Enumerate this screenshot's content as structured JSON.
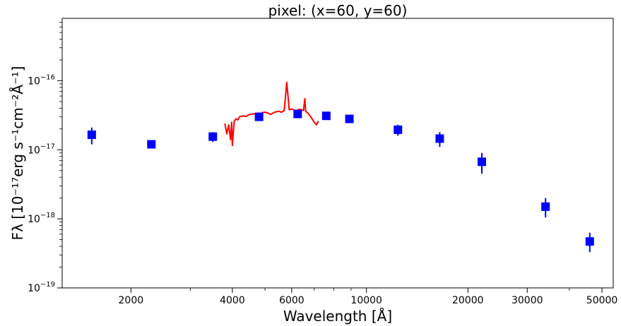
{
  "chart_data": {
    "type": "scatter",
    "title": "pixel: (x=60, y=60)",
    "xlabel": "Wavelength [Å]",
    "ylabel": "Fλ [10⁻¹⁷erg s⁻¹cm⁻²Å⁻¹]",
    "xscale": "log",
    "yscale": "log",
    "xlim": [
      1250,
      54000
    ],
    "ylim": [
      1e-19,
      8e-16
    ],
    "x_ticks": [
      {
        "value": 2000,
        "label": "2000"
      },
      {
        "value": 4000,
        "label": "4000"
      },
      {
        "value": 6000,
        "label": "6000"
      },
      {
        "value": 10000,
        "label": "10000"
      },
      {
        "value": 20000,
        "label": "20000"
      },
      {
        "value": 30000,
        "label": "30000"
      },
      {
        "value": 50000,
        "label": "50000"
      }
    ],
    "y_ticks": [
      {
        "value": 1e-19,
        "base": "10",
        "exp": "−19"
      },
      {
        "value": 1e-18,
        "base": "10",
        "exp": "−18"
      },
      {
        "value": 1e-17,
        "base": "10",
        "exp": "−17"
      },
      {
        "value": 1e-16,
        "base": "10",
        "exp": "−16"
      }
    ],
    "grid": false,
    "photometry": {
      "color": "#0000ff",
      "marker": "square",
      "points": [
        {
          "x": 1530,
          "y": 1.65e-17,
          "ylo": 1.2e-17,
          "yhi": 2.1e-17
        },
        {
          "x": 2300,
          "y": 1.2e-17,
          "ylo": 1.12e-17,
          "yhi": 1.3e-17
        },
        {
          "x": 3500,
          "y": 1.55e-17,
          "ylo": 1.3e-17,
          "yhi": 1.8e-17
        },
        {
          "x": 4800,
          "y": 3e-17,
          "ylo": 2.8e-17,
          "yhi": 3.2e-17
        },
        {
          "x": 6250,
          "y": 3.3e-17,
          "ylo": 3.1e-17,
          "yhi": 3.5e-17
        },
        {
          "x": 7600,
          "y": 3.1e-17,
          "ylo": 2.9e-17,
          "yhi": 3.3e-17
        },
        {
          "x": 8900,
          "y": 2.8e-17,
          "ylo": 2.6e-17,
          "yhi": 3e-17
        },
        {
          "x": 12400,
          "y": 1.95e-17,
          "ylo": 1.6e-17,
          "yhi": 2.3e-17
        },
        {
          "x": 16500,
          "y": 1.45e-17,
          "ylo": 1.1e-17,
          "yhi": 1.8e-17
        },
        {
          "x": 22000,
          "y": 6.7e-18,
          "ylo": 4.5e-18,
          "yhi": 9e-18
        },
        {
          "x": 34000,
          "y": 1.5e-18,
          "ylo": 1.05e-18,
          "yhi": 2e-18
        },
        {
          "x": 46000,
          "y": 4.7e-19,
          "ylo": 3.3e-19,
          "yhi": 6.3e-19
        }
      ]
    },
    "spectrum": {
      "color": "#ff0000",
      "x": [
        3800,
        3850,
        3900,
        3950,
        3980,
        4000,
        4050,
        4100,
        4150,
        4200,
        4300,
        4400,
        4500,
        4600,
        4700,
        4800,
        4861,
        4900,
        5000,
        5100,
        5200,
        5300,
        5400,
        5500,
        5600,
        5700,
        5800,
        5900,
        6000,
        6100,
        6200,
        6300,
        6400,
        6500,
        6563,
        6600,
        6700,
        6800,
        6900,
        7000,
        7100,
        7200
      ],
      "y": [
        2.4e-17,
        1.7e-17,
        2.3e-17,
        1.4e-17,
        2.5e-17,
        1.15e-17,
        2.6e-17,
        2.8e-17,
        2.7e-17,
        3e-17,
        3.1e-17,
        3.05e-17,
        3.25e-17,
        3.3e-17,
        3.35e-17,
        3.4e-17,
        3.2e-17,
        3.45e-17,
        3.5e-17,
        3.4e-17,
        3.25e-17,
        3.45e-17,
        3.55e-17,
        3.6e-17,
        3.5e-17,
        3.7e-17,
        9.5e-17,
        3.8e-17,
        3.9e-17,
        3.75e-17,
        3.7e-17,
        3.85e-17,
        3.8e-17,
        3.7e-17,
        5.5e-17,
        3.6e-17,
        3.4e-17,
        3.1e-17,
        2.8e-17,
        2.5e-17,
        2.3e-17,
        2.6e-17
      ]
    }
  }
}
